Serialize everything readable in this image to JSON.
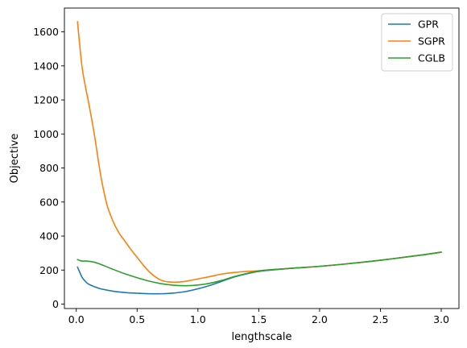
{
  "chart_data": {
    "type": "line",
    "xlabel": "lengthscale",
    "ylabel": "Objective",
    "xlim": [
      -0.0975,
      3.1455
    ],
    "ylim": [
      -26,
      1740
    ],
    "xticks": [
      0.0,
      0.5,
      1.0,
      1.5,
      2.0,
      2.5,
      3.0
    ],
    "xtick_labels": [
      "0.0",
      "0.5",
      "1.0",
      "1.5",
      "2.0",
      "2.5",
      "3.0"
    ],
    "yticks": [
      0,
      200,
      400,
      600,
      800,
      1000,
      1200,
      1400,
      1600
    ],
    "ytick_labels": [
      "0",
      "200",
      "400",
      "600",
      "800",
      "1000",
      "1200",
      "1400",
      "1600"
    ],
    "grid": false,
    "legend_position": "top-right",
    "series": [
      {
        "name": "GPR",
        "color": "#1f77b4",
        "x": [
          0.01,
          0.03,
          0.05,
          0.08,
          0.1,
          0.15,
          0.2,
          0.3,
          0.4,
          0.5,
          0.6,
          0.7,
          0.8,
          0.9,
          1.0,
          1.1,
          1.2,
          1.3,
          1.4,
          1.5,
          1.6,
          1.8,
          2.0,
          2.2,
          2.5,
          2.8,
          3.0
        ],
        "y": [
          218,
          185,
          155,
          130,
          118,
          102,
          90,
          76,
          68,
          64,
          61,
          61,
          65,
          74,
          90,
          110,
          135,
          160,
          178,
          192,
          200,
          212,
          222,
          235,
          258,
          285,
          305
        ]
      },
      {
        "name": "SGPR",
        "color": "#ff7f0e",
        "x": [
          0.01,
          0.03,
          0.05,
          0.08,
          0.1,
          0.15,
          0.2,
          0.25,
          0.3,
          0.35,
          0.4,
          0.45,
          0.5,
          0.55,
          0.6,
          0.65,
          0.7,
          0.75,
          0.8,
          0.85,
          0.9,
          1.0,
          1.1,
          1.2,
          1.3,
          1.4,
          1.5,
          1.6,
          1.8,
          2.0,
          2.2,
          2.5,
          2.8,
          3.0
        ],
        "y": [
          1660,
          1510,
          1380,
          1260,
          1190,
          990,
          760,
          590,
          490,
          420,
          370,
          320,
          275,
          230,
          190,
          160,
          140,
          131,
          129,
          130,
          134,
          148,
          162,
          177,
          186,
          192,
          196,
          202,
          212,
          222,
          235,
          258,
          285,
          305
        ]
      },
      {
        "name": "CGLB",
        "color": "#2ca02c",
        "x": [
          0.01,
          0.03,
          0.05,
          0.08,
          0.1,
          0.15,
          0.2,
          0.3,
          0.4,
          0.5,
          0.6,
          0.7,
          0.8,
          0.9,
          1.0,
          1.1,
          1.2,
          1.3,
          1.4,
          1.5,
          1.6,
          1.8,
          2.0,
          2.2,
          2.5,
          2.8,
          3.0
        ],
        "y": [
          262,
          256,
          253,
          253,
          252,
          246,
          234,
          205,
          178,
          155,
          135,
          120,
          111,
          108,
          112,
          123,
          140,
          162,
          180,
          194,
          202,
          212,
          222,
          235,
          258,
          285,
          305
        ]
      }
    ]
  }
}
